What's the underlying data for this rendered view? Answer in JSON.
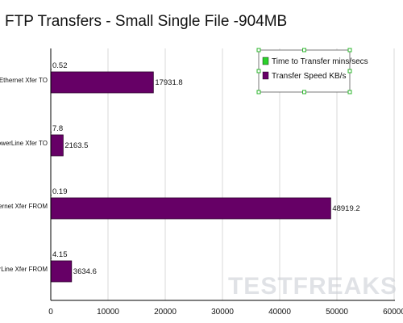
{
  "chart_data": {
    "type": "bar",
    "orientation": "horizontal",
    "title": "FTP Transfers - Small Single File -904MB",
    "categories": [
      "Ethernet Xfer TO",
      "PowerLine Xfer TO",
      "Ethernet Xfer FROM",
      "PowerLine Xfer FROM"
    ],
    "series": [
      {
        "name": "Time to Transfer mins/secs",
        "values": [
          0.52,
          7.8,
          0.19,
          4.15
        ],
        "color": "#2bd12b"
      },
      {
        "name": "Transfer Speed KB/s",
        "values": [
          17931.8,
          2163.5,
          48919.2,
          3634.6
        ],
        "color": "#660066"
      }
    ],
    "value_labels": [
      [
        "0.52",
        "7.8",
        "0.19",
        "4.15"
      ],
      [
        "17931.8",
        "2163.5",
        "48919.2",
        "3634.6"
      ]
    ],
    "xlim": [
      0,
      60000
    ],
    "xticks": [
      "0",
      "10000",
      "20000",
      "30000",
      "40000",
      "50000",
      "60000"
    ],
    "xlabel": "",
    "ylabel": "",
    "grid": "vertical",
    "legend": "top-right"
  },
  "watermark": "TESTFREAKS"
}
